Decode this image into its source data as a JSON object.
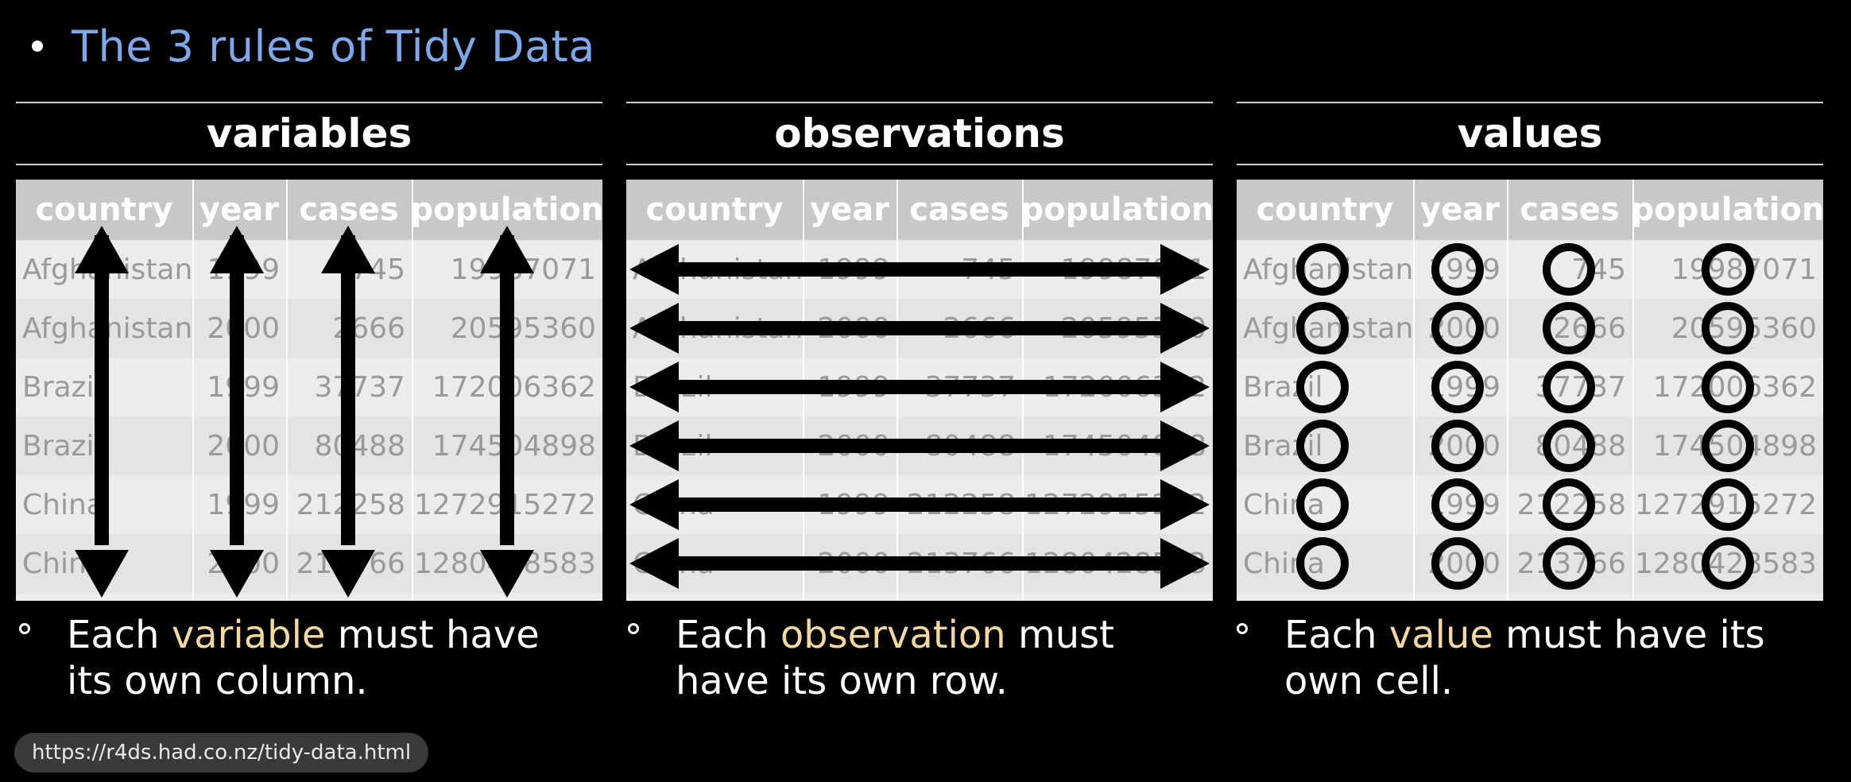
{
  "slide_title": "The 3 rules of Tidy Data",
  "columns": [
    "country",
    "year",
    "cases",
    "population"
  ],
  "rows": [
    [
      "Afghanistan",
      "1999",
      "745",
      "19987071"
    ],
    [
      "Afghanistan",
      "2000",
      "2666",
      "20595360"
    ],
    [
      "Brazil",
      "1999",
      "37737",
      "172006362"
    ],
    [
      "Brazil",
      "2000",
      "80488",
      "174504898"
    ],
    [
      "China",
      "1999",
      "212258",
      "1272915272"
    ],
    [
      "China",
      "2000",
      "213766",
      "1280428583"
    ]
  ],
  "panels": [
    {
      "heading": "variables",
      "rule_pre": "Each ",
      "rule_hl": "variable",
      "rule_post": " must have its own column.",
      "marker": "column-arrows"
    },
    {
      "heading": "observations",
      "rule_pre": "Each ",
      "rule_hl": "observation",
      "rule_post": " must have its own row.",
      "marker": "row-arrows"
    },
    {
      "heading": "values",
      "rule_pre": "Each ",
      "rule_hl": "value",
      "rule_post": " must have its own cell.",
      "marker": "cell-circles"
    }
  ],
  "colors": {
    "title": "#7ea8e8",
    "highlight": "#f3d9a0",
    "header_bg": "#c8c8c8",
    "marker": "#000000"
  },
  "source_url": "https://r4ds.had.co.nz/tidy-data.html"
}
